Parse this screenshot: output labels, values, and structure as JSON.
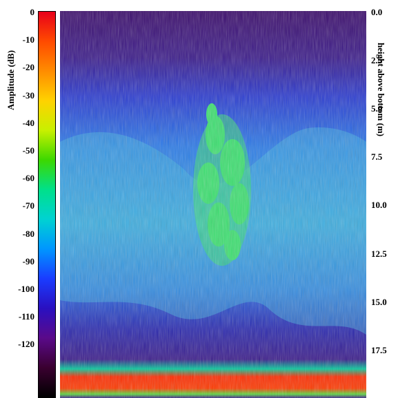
{
  "colorbar": {
    "label": "Amplitude (dB)",
    "ticks": [
      "0",
      "-10",
      "-20",
      "-30",
      "-40",
      "-50",
      "-60",
      "-70",
      "-80",
      "-90",
      "-100",
      "-110",
      "-120"
    ],
    "colors": [
      "#e8001a",
      "#ff4a00",
      "#ff8c00",
      "#ffd200",
      "#c8f000",
      "#3cd800",
      "#00e08a",
      "#00d2d2",
      "#0096ff",
      "#1a3cff",
      "#2a10c0",
      "#5a0a8a",
      "#3a0030",
      "#000000"
    ]
  },
  "right_axis": {
    "label": "height above bottom (m)",
    "ticks": [
      "0.0",
      "2.5",
      "5.0",
      "7.5",
      "10.0",
      "12.5",
      "15.0",
      "17.5"
    ]
  }
}
